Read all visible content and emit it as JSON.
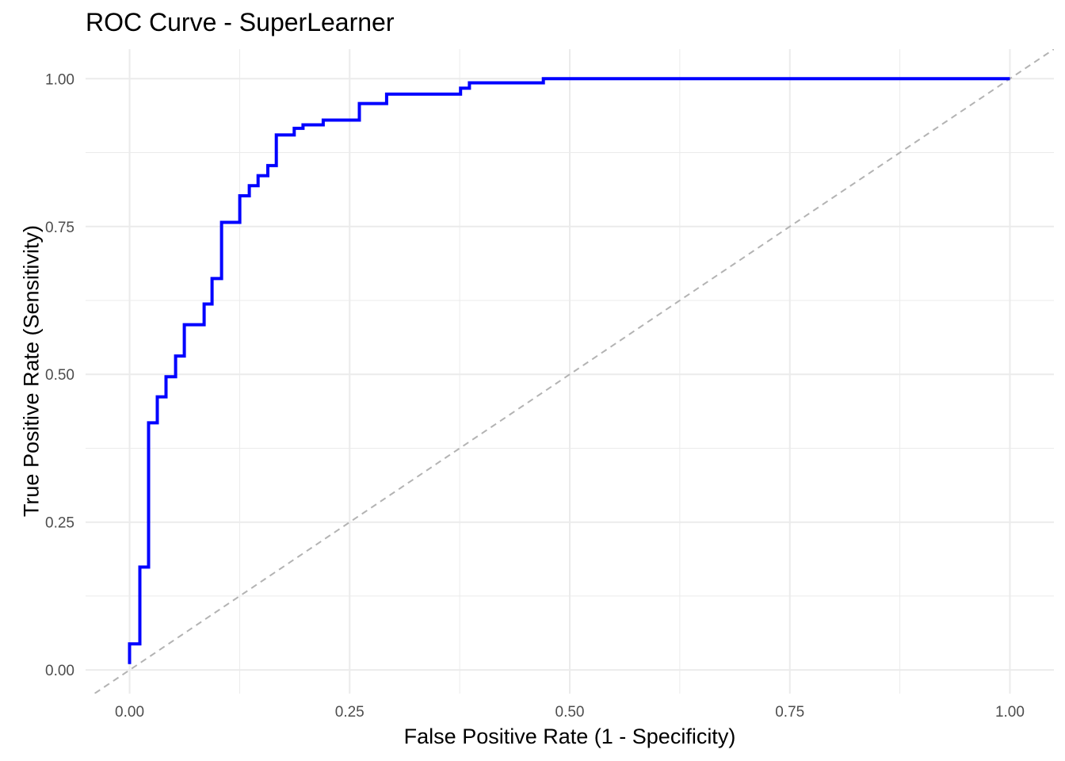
{
  "chart_data": {
    "type": "line",
    "title": "ROC Curve - SuperLearner",
    "xlabel": "False Positive Rate (1 - Specificity)",
    "ylabel": "True Positive Rate (Sensitivity)",
    "xlim": [
      -0.05,
      1.05
    ],
    "ylim": [
      -0.04,
      1.05
    ],
    "xticks": [
      "0.00",
      "0.25",
      "0.50",
      "0.75",
      "1.00"
    ],
    "yticks": [
      "0.00",
      "0.25",
      "0.50",
      "0.75",
      "1.00"
    ],
    "grid": true,
    "series": [
      {
        "name": "ROC",
        "color": "#0000FF",
        "points": [
          [
            0.0,
            0.01
          ],
          [
            0.0,
            0.044
          ],
          [
            0.0117,
            0.044
          ],
          [
            0.0117,
            0.174
          ],
          [
            0.0216,
            0.174
          ],
          [
            0.0216,
            0.418
          ],
          [
            0.0315,
            0.418
          ],
          [
            0.0315,
            0.462
          ],
          [
            0.0414,
            0.462
          ],
          [
            0.0414,
            0.496
          ],
          [
            0.0523,
            0.496
          ],
          [
            0.0523,
            0.531
          ],
          [
            0.0622,
            0.531
          ],
          [
            0.0622,
            0.584
          ],
          [
            0.0847,
            0.584
          ],
          [
            0.0847,
            0.619
          ],
          [
            0.0937,
            0.619
          ],
          [
            0.0937,
            0.662
          ],
          [
            0.1045,
            0.662
          ],
          [
            0.1045,
            0.757
          ],
          [
            0.1252,
            0.757
          ],
          [
            0.1252,
            0.802
          ],
          [
            0.136,
            0.802
          ],
          [
            0.136,
            0.819
          ],
          [
            0.146,
            0.819
          ],
          [
            0.146,
            0.836
          ],
          [
            0.157,
            0.836
          ],
          [
            0.157,
            0.853
          ],
          [
            0.1667,
            0.853
          ],
          [
            0.1667,
            0.905
          ],
          [
            0.187,
            0.905
          ],
          [
            0.187,
            0.916
          ],
          [
            0.197,
            0.916
          ],
          [
            0.197,
            0.922
          ],
          [
            0.22,
            0.922
          ],
          [
            0.22,
            0.93
          ],
          [
            0.261,
            0.93
          ],
          [
            0.261,
            0.958
          ],
          [
            0.292,
            0.958
          ],
          [
            0.292,
            0.974
          ],
          [
            0.376,
            0.974
          ],
          [
            0.376,
            0.984
          ],
          [
            0.386,
            0.984
          ],
          [
            0.386,
            0.993
          ],
          [
            0.47,
            0.993
          ],
          [
            0.47,
            1.0
          ],
          [
            1.0,
            1.0
          ]
        ]
      },
      {
        "name": "Reference (random)",
        "color": "#B3B3B3",
        "dashed": true,
        "points": [
          [
            -0.05,
            -0.05
          ],
          [
            1.05,
            1.05
          ]
        ]
      }
    ]
  }
}
